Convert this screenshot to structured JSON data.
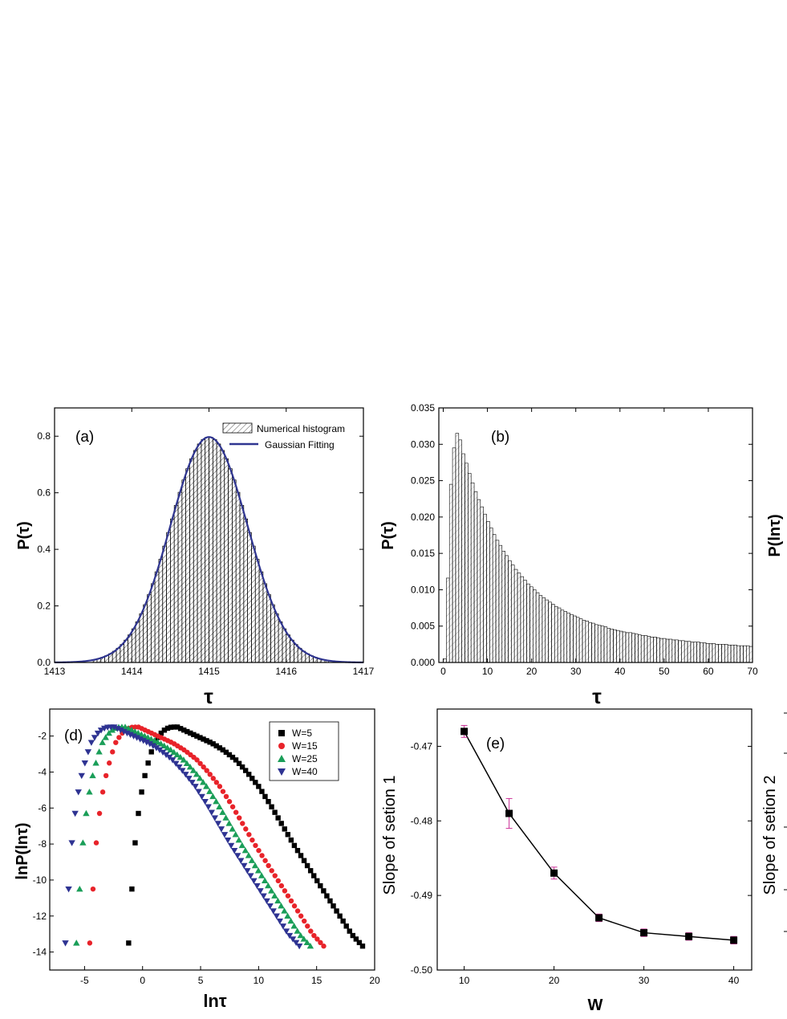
{
  "chart_data": [
    {
      "panel": "a",
      "type": "bar",
      "panel_label": "(a)",
      "xlabel": "τ",
      "ylabel": "P(τ)",
      "xlim": [
        1413,
        1417
      ],
      "ylim": [
        0,
        0.9
      ],
      "xticks": [
        "1413",
        "1414",
        "1415",
        "1416",
        "1417"
      ],
      "yticks": [
        "0.0",
        "0.2",
        "0.4",
        "0.6",
        "0.8"
      ],
      "legend": {
        "placement": "top-right",
        "entries": [
          "Numerical histogram",
          "Gaussian Fitting"
        ]
      },
      "series": [
        {
          "name": "Numerical histogram",
          "kind": "histogram",
          "bin_width": 0.05,
          "center": 1415.0,
          "sigma": 0.5,
          "peak": 0.797
        },
        {
          "name": "Gaussian Fitting",
          "kind": "line",
          "color": "#2f3590",
          "center": 1415.0,
          "sigma": 0.5,
          "peak": 0.797
        }
      ]
    },
    {
      "panel": "b",
      "type": "bar",
      "panel_label": "(b)",
      "xlabel": "τ",
      "ylabel": "P(τ)",
      "xlim": [
        -1,
        70
      ],
      "ylim": [
        0,
        0.035
      ],
      "xticks": [
        "0",
        "10",
        "20",
        "30",
        "40",
        "50",
        "60",
        "70"
      ],
      "yticks": [
        "0.000",
        "0.005",
        "0.010",
        "0.015",
        "0.020",
        "0.025",
        "0.030",
        "0.035"
      ],
      "bin_width": 0.7,
      "values": [
        0.0005,
        0.0116,
        0.0245,
        0.0295,
        0.0315,
        0.0306,
        0.0287,
        0.0274,
        0.026,
        0.0247,
        0.0235,
        0.0224,
        0.0214,
        0.0204,
        0.0194,
        0.0185,
        0.0176,
        0.0168,
        0.0161,
        0.0153,
        0.0147,
        0.014,
        0.0134,
        0.0128,
        0.0123,
        0.0118,
        0.0113,
        0.0108,
        0.0104,
        0.01,
        0.0096,
        0.0092,
        0.0089,
        0.0086,
        0.0083,
        0.008,
        0.0077,
        0.0075,
        0.0072,
        0.007,
        0.0068,
        0.0066,
        0.0064,
        0.0062,
        0.006,
        0.0058,
        0.0057,
        0.0055,
        0.0054,
        0.0052,
        0.0051,
        0.005,
        0.0049,
        0.0047,
        0.0046,
        0.0045,
        0.0044,
        0.0043,
        0.0042,
        0.0041,
        0.0041,
        0.004,
        0.0039,
        0.0038,
        0.0037,
        0.0037,
        0.0036,
        0.0035,
        0.0035,
        0.0034,
        0.0033,
        0.0033,
        0.0032,
        0.0032,
        0.0031,
        0.0031,
        0.003,
        0.003,
        0.0029,
        0.0029,
        0.0028,
        0.0028,
        0.0028,
        0.0027,
        0.0027,
        0.0026,
        0.0026,
        0.0026,
        0.0025,
        0.0025,
        0.0025,
        0.0025,
        0.0024,
        0.0024,
        0.0024,
        0.0023,
        0.0023,
        0.0023,
        0.0023,
        0.0022
      ]
    },
    {
      "panel": "d",
      "type": "scatter",
      "panel_label": "(d)",
      "xlabel": "lnτ",
      "ylabel": "lnP(lnτ)",
      "xlim": [
        -8,
        20
      ],
      "ylim": [
        -15,
        -0.5
      ],
      "xticks": [
        "-5",
        "0",
        "5",
        "10",
        "15",
        "20"
      ],
      "yticks": [
        "-2",
        "-4",
        "-6",
        "-8",
        "-10",
        "-12",
        "-14"
      ],
      "legend": {
        "placement": "top-right",
        "entries": [
          "W=5",
          "W=15",
          "W=25",
          "W=40"
        ]
      },
      "series": [
        {
          "name": "W=5",
          "marker": "square",
          "color": "#000000",
          "shift": 0.0,
          "x": [
            -1.2,
            -1.0,
            -0.8,
            -0.5,
            -0.2,
            0.2,
            0.6,
            1.0,
            1.5,
            2.0,
            2.5,
            3.0,
            4.0,
            5.0,
            6.0,
            7.0,
            8.0,
            9.0,
            10.0,
            11.0,
            12.0,
            13.0,
            14.0,
            15.0,
            16.0,
            17.0,
            18.0,
            19.0
          ],
          "y": [
            -13.5,
            -11.5,
            -9.0,
            -7.0,
            -5.5,
            -4.2,
            -3.2,
            -2.4,
            -1.9,
            -1.6,
            -1.5,
            -1.5,
            -1.8,
            -2.1,
            -2.4,
            -2.8,
            -3.3,
            -4.0,
            -4.8,
            -5.8,
            -6.9,
            -8.0,
            -9.0,
            -10.0,
            -11.0,
            -12.0,
            -13.0,
            -13.7
          ]
        },
        {
          "name": "W=15",
          "marker": "circle",
          "color": "#e8232a",
          "shift": -3.4
        },
        {
          "name": "W=25",
          "marker": "triangle-up",
          "color": "#1a9e58",
          "shift": -4.6
        },
        {
          "name": "W=40",
          "marker": "triangle-down",
          "color": "#2e3392",
          "shift": -5.6
        }
      ]
    },
    {
      "panel": "e",
      "type": "line",
      "panel_label": "(e)",
      "xlabel": "W",
      "ylabel": "Slope of setion 1",
      "xlim": [
        7,
        42
      ],
      "ylim": [
        -0.5,
        -0.465
      ],
      "xticks": [
        "10",
        "20",
        "30",
        "40"
      ],
      "yticks": [
        "-0.47",
        "-0.48",
        "-0.49",
        "-0.50"
      ],
      "x": [
        10,
        15,
        20,
        25,
        30,
        35,
        40
      ],
      "y": [
        -0.468,
        -0.479,
        -0.487,
        -0.493,
        -0.495,
        -0.4955,
        -0.496
      ],
      "err": [
        0.0008,
        0.002,
        0.0008,
        0.0005,
        0.0005,
        0.0005,
        0.0005
      ],
      "error_bar_color": "#cc3399"
    },
    {
      "panel": "c",
      "type": "bar",
      "ylabel": "P(lnτ)",
      "clipped": true
    },
    {
      "panel": "f",
      "type": "line",
      "ylabel": "Slope of setion 2",
      "clipped": true
    }
  ]
}
